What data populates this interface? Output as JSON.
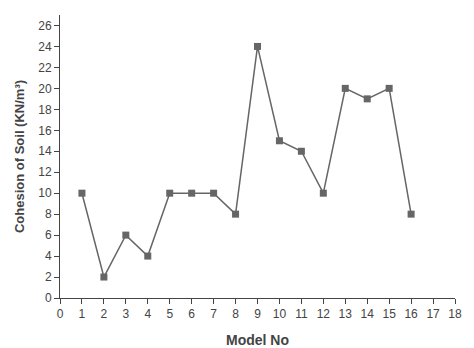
{
  "chart_data": {
    "type": "line",
    "x": [
      1,
      2,
      3,
      4,
      5,
      6,
      7,
      8,
      9,
      10,
      11,
      12,
      13,
      14,
      15,
      16
    ],
    "values": [
      10,
      2,
      6,
      4,
      10,
      10,
      10,
      8,
      24,
      15,
      14,
      10,
      20,
      19,
      20,
      8
    ],
    "xlabel": "Model No",
    "ylabel": "Cohesion of Soil (KN/m³)",
    "xlim": [
      0,
      18
    ],
    "ylim": [
      0,
      27
    ],
    "xticks": [
      0,
      1,
      2,
      3,
      4,
      5,
      6,
      7,
      8,
      9,
      10,
      11,
      12,
      13,
      14,
      15,
      16,
      17,
      18
    ],
    "yticks": [
      0,
      2,
      4,
      6,
      8,
      10,
      12,
      14,
      16,
      18,
      20,
      22,
      24,
      26
    ],
    "color": "#666666",
    "marker": "square",
    "grid": false
  }
}
